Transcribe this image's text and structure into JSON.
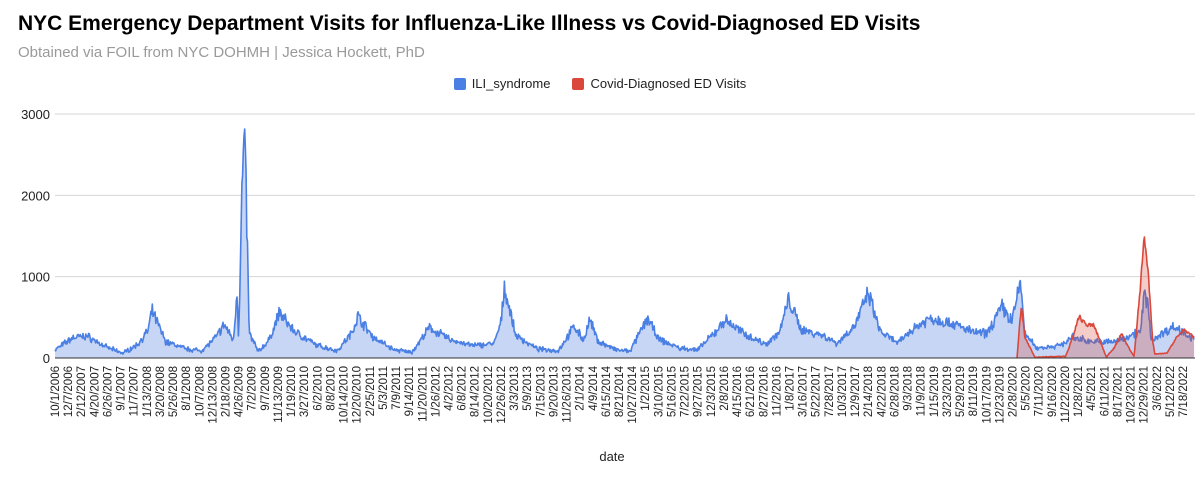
{
  "chart_data": {
    "type": "area",
    "title": "NYC Emergency Department Visits for Influenza-Like Illness vs Covid-Diagnosed ED Visits",
    "subtitle": "Obtained via FOIL from NYC DOHMH | Jessica Hockett, PhD",
    "xlabel": "date",
    "ylabel": "",
    "ylim": [
      0,
      3000
    ],
    "yticks": [
      "0",
      "1000",
      "2000",
      "3000"
    ],
    "ytick_values": [
      0,
      1000,
      2000,
      3000
    ],
    "grid": true,
    "legend_position": "top",
    "x_unit": "decimal year",
    "xlim": [
      2006.75,
      2022.7
    ],
    "x_tick_start": 2006.75,
    "x_tick_step_days": 67,
    "xticks": [
      "10/1/2006",
      "12/7/2006",
      "2/12/2007",
      "4/20/2007",
      "6/26/2007",
      "9/1/2007",
      "11/7/2007",
      "1/13/2008",
      "3/20/2008",
      "5/26/2008",
      "8/1/2008",
      "10/7/2008",
      "12/13/2008",
      "2/18/2009",
      "4/26/2009",
      "7/2/2009",
      "9/7/2009",
      "11/13/2009",
      "1/19/2010",
      "3/27/2010",
      "6/2/2010",
      "8/8/2010",
      "10/14/2010",
      "12/20/2010",
      "2/25/2011",
      "5/3/2011",
      "7/9/2011",
      "9/14/2011",
      "11/20/2011",
      "1/26/2012",
      "4/2/2012",
      "6/8/2012",
      "8/14/2012",
      "10/20/2012",
      "12/26/2012",
      "3/3/2013",
      "5/9/2013",
      "7/15/2013",
      "9/20/2013",
      "11/26/2013",
      "2/1/2014",
      "4/9/2014",
      "6/15/2014",
      "8/21/2014",
      "10/27/2014",
      "1/2/2015",
      "3/10/2015",
      "5/16/2015",
      "7/22/2015",
      "9/27/2015",
      "12/3/2015",
      "2/8/2016",
      "4/15/2016",
      "6/21/2016",
      "8/27/2016",
      "11/2/2016",
      "1/8/2017",
      "3/16/2017",
      "5/22/2017",
      "7/28/2017",
      "10/3/2017",
      "12/9/2017",
      "2/14/2018",
      "4/22/2018",
      "6/28/2018",
      "9/3/2018",
      "11/9/2018",
      "1/15/2019",
      "3/23/2019",
      "5/29/2019",
      "8/11/2019",
      "10/17/2019",
      "12/23/2019",
      "2/28/2020",
      "5/5/2020",
      "7/11/2020",
      "9/16/2020",
      "11/22/2020",
      "1/28/2021",
      "4/5/2021",
      "6/11/2021",
      "8/17/2021",
      "10/23/2021",
      "12/29/2021",
      "3/6/2022",
      "5/12/2022",
      "7/18/2022"
    ],
    "series": [
      {
        "name": "ILI_syndrome",
        "color": "#4a7fe3",
        "fill": "#c8d6f6",
        "points": [
          [
            2006.75,
            100
          ],
          [
            2007.0,
            250
          ],
          [
            2007.2,
            270
          ],
          [
            2007.45,
            140
          ],
          [
            2007.7,
            60
          ],
          [
            2007.9,
            160
          ],
          [
            2008.05,
            330
          ],
          [
            2008.11,
            575
          ],
          [
            2008.3,
            200
          ],
          [
            2008.6,
            110
          ],
          [
            2008.8,
            90
          ],
          [
            2009.0,
            250
          ],
          [
            2009.12,
            410
          ],
          [
            2009.25,
            220
          ],
          [
            2009.3,
            860
          ],
          [
            2009.32,
            230
          ],
          [
            2009.37,
            2100
          ],
          [
            2009.4,
            2700
          ],
          [
            2009.43,
            1910
          ],
          [
            2009.47,
            300
          ],
          [
            2009.6,
            80
          ],
          [
            2009.75,
            220
          ],
          [
            2009.89,
            555
          ],
          [
            2010.1,
            330
          ],
          [
            2010.4,
            160
          ],
          [
            2010.7,
            90
          ],
          [
            2010.9,
            300
          ],
          [
            2010.99,
            515
          ],
          [
            2011.2,
            260
          ],
          [
            2011.5,
            100
          ],
          [
            2011.75,
            70
          ],
          [
            2011.99,
            370
          ],
          [
            2012.3,
            220
          ],
          [
            2012.6,
            150
          ],
          [
            2012.9,
            180
          ],
          [
            2013.0,
            450
          ],
          [
            2013.04,
            890
          ],
          [
            2013.2,
            280
          ],
          [
            2013.5,
            110
          ],
          [
            2013.8,
            90
          ],
          [
            2014.02,
            390
          ],
          [
            2014.15,
            220
          ],
          [
            2014.24,
            470
          ],
          [
            2014.35,
            210
          ],
          [
            2014.6,
            100
          ],
          [
            2014.8,
            80
          ],
          [
            2015.05,
            490
          ],
          [
            2015.2,
            230
          ],
          [
            2015.5,
            120
          ],
          [
            2015.75,
            100
          ],
          [
            2016.0,
            320
          ],
          [
            2016.13,
            470
          ],
          [
            2016.4,
            300
          ],
          [
            2016.7,
            170
          ],
          [
            2016.9,
            320
          ],
          [
            2017.02,
            720
          ],
          [
            2017.2,
            350
          ],
          [
            2017.5,
            280
          ],
          [
            2017.7,
            180
          ],
          [
            2017.95,
            400
          ],
          [
            2018.14,
            800
          ],
          [
            2018.3,
            330
          ],
          [
            2018.55,
            180
          ],
          [
            2018.75,
            350
          ],
          [
            2019.0,
            490
          ],
          [
            2019.3,
            430
          ],
          [
            2019.6,
            320
          ],
          [
            2019.8,
            300
          ],
          [
            2020.01,
            630
          ],
          [
            2020.15,
            450
          ],
          [
            2020.27,
            940
          ],
          [
            2020.33,
            300
          ],
          [
            2020.5,
            120
          ],
          [
            2020.8,
            150
          ],
          [
            2021.0,
            250
          ],
          [
            2021.3,
            200
          ],
          [
            2021.6,
            200
          ],
          [
            2021.85,
            300
          ],
          [
            2021.95,
            320
          ],
          [
            2022.0,
            760
          ],
          [
            2022.05,
            700
          ],
          [
            2022.1,
            220
          ],
          [
            2022.4,
            380
          ],
          [
            2022.55,
            330
          ],
          [
            2022.7,
            220
          ]
        ]
      },
      {
        "name": "Covid-Diagnosed ED Visits",
        "color": "#d9483b",
        "fill": "rgba(217,72,59,0.28)",
        "points": [
          [
            2020.22,
            0
          ],
          [
            2020.28,
            640
          ],
          [
            2020.33,
            250
          ],
          [
            2020.47,
            10
          ],
          [
            2020.9,
            20
          ],
          [
            2021.0,
            250
          ],
          [
            2021.09,
            510
          ],
          [
            2021.2,
            400
          ],
          [
            2021.3,
            400
          ],
          [
            2021.47,
            10
          ],
          [
            2021.6,
            150
          ],
          [
            2021.68,
            300
          ],
          [
            2021.8,
            100
          ],
          [
            2021.86,
            20
          ],
          [
            2021.95,
            900
          ],
          [
            2022.0,
            1580
          ],
          [
            2022.06,
            1000
          ],
          [
            2022.12,
            200
          ],
          [
            2022.15,
            50
          ],
          [
            2022.32,
            60
          ],
          [
            2022.45,
            250
          ],
          [
            2022.56,
            350
          ],
          [
            2022.7,
            250
          ]
        ]
      }
    ]
  }
}
